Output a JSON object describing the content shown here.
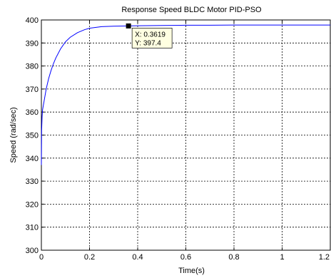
{
  "chart_data": {
    "type": "line",
    "title": "Response Speed BLDC Motor PID-PSO",
    "xlabel": "Time(s)",
    "ylabel": "Speed (rad/sec)",
    "xlim": [
      0,
      1.2
    ],
    "ylim": [
      300,
      400
    ],
    "xticks": [
      0,
      0.2,
      0.4,
      0.6,
      0.8,
      1,
      1.2
    ],
    "xtick_labels": [
      "0",
      "0.2",
      "0.4",
      "0.6",
      "0.8",
      "1",
      "1.2"
    ],
    "yticks": [
      300,
      310,
      320,
      330,
      340,
      350,
      360,
      370,
      380,
      390,
      400
    ],
    "ytick_labels": [
      "300",
      "310",
      "320",
      "330",
      "340",
      "350",
      "360",
      "370",
      "380",
      "390",
      "400"
    ],
    "grid": true,
    "line_color": "#0000ff",
    "series": [
      {
        "x": [
          0,
          0.001,
          0.003,
          0.005,
          0.01,
          0.02,
          0.03,
          0.04,
          0.05,
          0.06,
          0.08,
          0.1,
          0.12,
          0.15,
          0.18,
          0.2,
          0.25,
          0.3,
          0.3619,
          0.4,
          0.5,
          0.6,
          0.7,
          0.8,
          0.9,
          1,
          1.1,
          1.2
        ],
        "y": [
          337,
          352,
          358,
          361,
          364,
          370,
          374.5,
          378,
          381,
          383.5,
          387.5,
          390.5,
          392.5,
          394.5,
          395.8,
          396.4,
          397.1,
          397.3,
          397.4,
          397.5,
          397.6,
          397.7,
          397.7,
          397.8,
          397.8,
          397.8,
          397.8,
          397.8
        ]
      }
    ],
    "datatip": {
      "x": 0.3619,
      "y": 397.4,
      "x_text": "X: 0.3619",
      "y_text": "Y: 397.4"
    }
  }
}
